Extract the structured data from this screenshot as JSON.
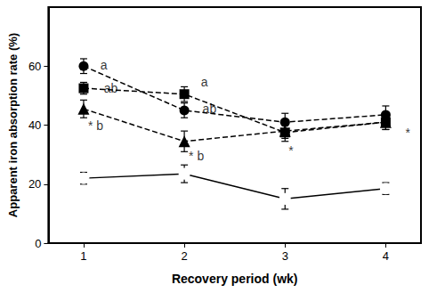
{
  "chart_data": {
    "type": "line",
    "x_label": "Recovery period (wk)",
    "y_label": "Apparent iron absorption rate (%)",
    "x": [
      1,
      2,
      3,
      4
    ],
    "xlim": [
      0.65,
      4.35
    ],
    "xticks": [
      1,
      2,
      3,
      4
    ],
    "ylim": [
      0,
      80
    ],
    "yticks": [
      0,
      20,
      40,
      60
    ],
    "grid": false,
    "series": [
      {
        "color": "#000000",
        "marker": "circle",
        "line_style": "dashed",
        "values": [
          60,
          45,
          41,
          43.5
        ],
        "errors": [
          2.5,
          2.5,
          3,
          3
        ]
      },
      {
        "color": "#000000",
        "marker": "square",
        "line_style": "dashed",
        "values": [
          52.5,
          50.5,
          37.5,
          41
        ],
        "errors": [
          2,
          2.5,
          3,
          2.5
        ]
      },
      {
        "color": "#000000",
        "marker": "triangle",
        "line_style": "dashed",
        "values": [
          45.5,
          34.5,
          38,
          41
        ],
        "errors": [
          3,
          3.5,
          2.5,
          2.5
        ]
      },
      {
        "color": "#000000",
        "marker": "open_circle",
        "line_style": "solid",
        "values": [
          22,
          23.5,
          15,
          18.5
        ],
        "errors": [
          2,
          3,
          3.5,
          2
        ]
      }
    ],
    "annotations": [
      {
        "text": "a",
        "x": 1.2,
        "y": 60.5
      },
      {
        "text": "ab",
        "x": 1.27,
        "y": 52.5
      },
      {
        "text": "* b",
        "x": 1.12,
        "y": 40
      },
      {
        "text": "a",
        "x": 2.2,
        "y": 54.5
      },
      {
        "text": "ab",
        "x": 2.25,
        "y": 45.5
      },
      {
        "text": "* b",
        "x": 2.12,
        "y": 29.5
      },
      {
        "text": "*",
        "x": 3.06,
        "y": 31.5
      },
      {
        "text": "*",
        "x": 4.22,
        "y": 37.5
      }
    ]
  }
}
